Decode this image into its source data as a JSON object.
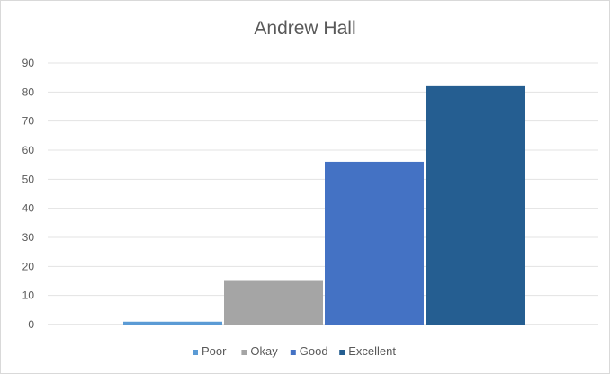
{
  "chart_data": {
    "type": "bar",
    "title": "Andrew Hall",
    "xlabel": "",
    "ylabel": "",
    "ylim": [
      0,
      90
    ],
    "yticks": [
      0,
      10,
      20,
      30,
      40,
      50,
      60,
      70,
      80,
      90
    ],
    "grid": true,
    "legend_position": "bottom",
    "series": [
      {
        "name": "Poor",
        "value": 1,
        "color": "#5b9bd5"
      },
      {
        "name": "Okay",
        "value": 15,
        "color": "#a5a5a5"
      },
      {
        "name": "Good",
        "value": 56,
        "color": "#4472c4"
      },
      {
        "name": "Excellent",
        "value": 82,
        "color": "#255e91"
      }
    ]
  }
}
